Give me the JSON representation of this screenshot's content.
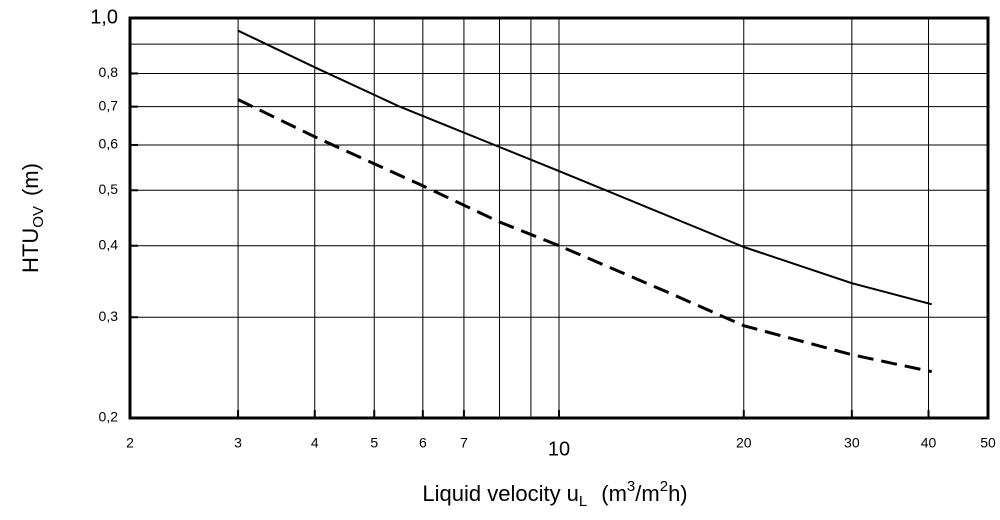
{
  "chart_data": {
    "type": "line",
    "xlabel": [
      "Liquid velocity u",
      "L",
      "(m",
      "3",
      "/m",
      "2",
      "h)"
    ],
    "ylabel": [
      "HTU",
      "OV",
      "(m)"
    ],
    "xlog": true,
    "ylog": true,
    "grid": true,
    "xlim": [
      2,
      50
    ],
    "ylim": [
      0.2,
      1.0
    ],
    "xticks": [
      2,
      3,
      4,
      5,
      6,
      7,
      10,
      20,
      30,
      40,
      50
    ],
    "xgrid": [
      3,
      4,
      5,
      6,
      7,
      8,
      9,
      10,
      20,
      30,
      40
    ],
    "yticks": [
      {
        "value": 0.2,
        "label": "0,2"
      },
      {
        "value": 0.3,
        "label": "0,3"
      },
      {
        "value": 0.4,
        "label": "0,4"
      },
      {
        "value": 0.5,
        "label": "0,5"
      },
      {
        "value": 0.6,
        "label": "0,6"
      },
      {
        "value": 0.7,
        "label": "0,7"
      },
      {
        "value": 0.8,
        "label": "0,8"
      },
      {
        "value": 1.0,
        "label": "1,0"
      }
    ],
    "ygrid": [
      0.3,
      0.4,
      0.5,
      0.6,
      0.7,
      0.8,
      0.9
    ],
    "series": [
      {
        "color": "#000000",
        "dash": false,
        "x": [
          3,
          4,
          5.5,
          8,
          10,
          20,
          30,
          40.5
        ],
        "values": [
          0.95,
          0.82,
          0.7,
          0.595,
          0.54,
          0.398,
          0.344,
          0.316
        ]
      },
      {
        "color": "#000000",
        "dash": true,
        "x": [
          3,
          4,
          6,
          8,
          10,
          15,
          20,
          30,
          40.5
        ],
        "values": [
          0.72,
          0.62,
          0.509,
          0.44,
          0.4,
          0.332,
          0.29,
          0.258,
          0.241
        ]
      }
    ]
  }
}
